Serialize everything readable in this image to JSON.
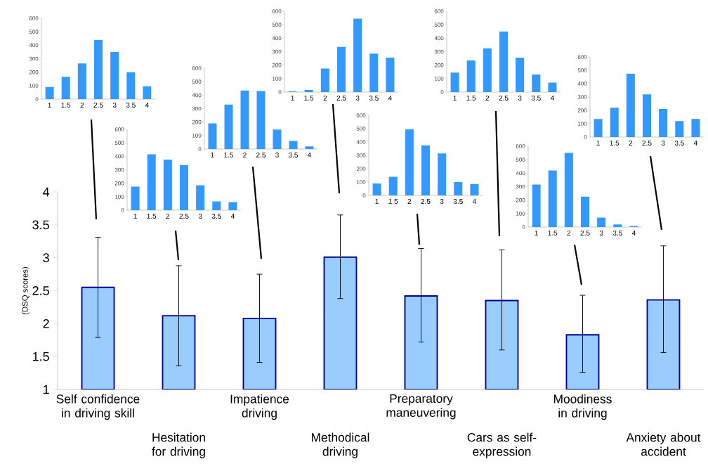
{
  "chart_data": [
    {
      "type": "bar",
      "ylabel": "(DSQ scores)",
      "categories": [
        "Self confidence in driving skill",
        "Hesitation for driving",
        "Impatience driving",
        "Methodical driving",
        "Preparatory maneuvering",
        "Cars as self-expression",
        "Moodiness in driving",
        "Anxiety about accident"
      ],
      "values": [
        2.55,
        2.12,
        2.08,
        3.01,
        2.42,
        2.35,
        1.83,
        2.36
      ],
      "errors": [
        [
          1.79,
          3.31
        ],
        [
          1.36,
          2.88
        ],
        [
          1.41,
          2.75
        ],
        [
          2.38,
          3.65
        ],
        [
          1.72,
          3.14
        ],
        [
          1.6,
          3.12
        ],
        [
          1.26,
          2.43
        ],
        [
          1.56,
          3.18
        ]
      ],
      "color": "#99ccff",
      "ylim": [
        1,
        4
      ],
      "yticks": [
        1,
        1.5,
        2,
        2.5,
        3,
        3.5,
        4
      ]
    },
    {
      "type": "bar",
      "categories": [
        "1",
        "1.5",
        "2",
        "2.5",
        "3",
        "3.5",
        "4"
      ],
      "values": [
        90,
        165,
        265,
        440,
        350,
        200,
        95
      ],
      "color": "#3399ff",
      "ylim": [
        0,
        600
      ],
      "yticks": [
        0,
        100,
        200,
        300,
        400,
        500,
        600
      ]
    },
    {
      "type": "bar",
      "categories": [
        "1",
        "1.5",
        "2",
        "2.5",
        "3",
        "3.5",
        "4"
      ],
      "values": [
        175,
        415,
        375,
        335,
        185,
        65,
        60
      ],
      "color": "#3399ff",
      "ylim": [
        0,
        600
      ],
      "yticks": [
        0,
        100,
        200,
        300,
        400,
        500,
        600
      ]
    },
    {
      "type": "bar",
      "categories": [
        "1",
        "1.5",
        "2",
        "2.5",
        "3",
        "3.5",
        "4"
      ],
      "values": [
        190,
        330,
        435,
        430,
        145,
        60,
        20
      ],
      "color": "#3399ff",
      "ylim": [
        0,
        600
      ],
      "yticks": [
        0,
        100,
        200,
        300,
        400,
        500,
        600
      ]
    },
    {
      "type": "bar",
      "categories": [
        "1",
        "1.5",
        "2",
        "2.5",
        "3",
        "3.5",
        "4"
      ],
      "values": [
        5,
        15,
        175,
        335,
        545,
        285,
        255
      ],
      "color": "#3399ff",
      "ylim": [
        0,
        600
      ],
      "yticks": [
        0,
        100,
        200,
        300,
        400,
        500,
        600
      ]
    },
    {
      "type": "bar",
      "categories": [
        "1",
        "1.5",
        "2",
        "2.5",
        "3",
        "3.5",
        "4"
      ],
      "values": [
        90,
        140,
        495,
        375,
        315,
        100,
        85
      ],
      "color": "#3399ff",
      "ylim": [
        0,
        600
      ],
      "yticks": [
        0,
        100,
        200,
        300,
        400,
        500,
        600
      ]
    },
    {
      "type": "bar",
      "categories": [
        "1",
        "1.5",
        "2",
        "2.5",
        "3",
        "3.5",
        "4"
      ],
      "values": [
        145,
        235,
        325,
        450,
        255,
        130,
        70
      ],
      "color": "#3399ff",
      "ylim": [
        0,
        600
      ],
      "yticks": [
        0,
        100,
        200,
        300,
        400,
        500,
        600
      ]
    },
    {
      "type": "bar",
      "categories": [
        "1",
        "1.5",
        "2",
        "2.5",
        "3",
        "3.5",
        "4"
      ],
      "values": [
        315,
        420,
        550,
        225,
        70,
        20,
        8
      ],
      "color": "#3399ff",
      "ylim": [
        0,
        600
      ],
      "yticks": [
        0,
        100,
        200,
        300,
        400,
        500,
        600
      ]
    },
    {
      "type": "bar",
      "categories": [
        "1",
        "1.5",
        "2",
        "2.5",
        "3",
        "3.5",
        "4"
      ],
      "values": [
        135,
        220,
        475,
        320,
        210,
        120,
        135
      ],
      "color": "#3399ff",
      "ylim": [
        0,
        600
      ],
      "yticks": [
        0,
        100,
        200,
        300,
        400,
        500,
        600
      ]
    }
  ]
}
